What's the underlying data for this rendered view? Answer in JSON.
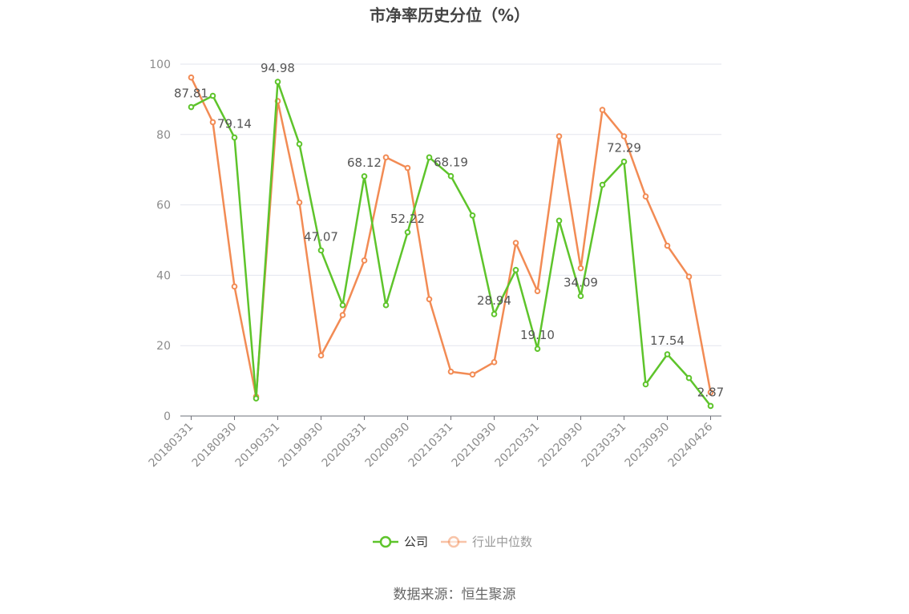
{
  "chart_data": {
    "type": "line",
    "title": "市净率历史分位（%）",
    "source": "数据来源：恒生聚源",
    "xlabel": "",
    "ylabel": "",
    "ylim": [
      0,
      100
    ],
    "yticks": [
      0,
      20,
      40,
      60,
      80,
      100
    ],
    "x": [
      "20180331",
      "20180630",
      "20180930",
      "20181231",
      "20190331",
      "20190630",
      "20190930",
      "20191231",
      "20200331",
      "20200630",
      "20200930",
      "20201231",
      "20210331",
      "20210630",
      "20210930",
      "20211231",
      "20220331",
      "20220630",
      "20220930",
      "20221231",
      "20230331",
      "20230630",
      "20230930",
      "20231231",
      "20240426"
    ],
    "xtick_labels": [
      "20180331",
      "20180930",
      "20190331",
      "20190930",
      "20200331",
      "20200930",
      "20210331",
      "20210930",
      "20220331",
      "20220930",
      "20230331",
      "20230930",
      "20240426"
    ],
    "legend_position": "bottom-center",
    "grid": true,
    "series": [
      {
        "name": "公司",
        "color": "#5ec42b",
        "values": [
          87.81,
          91.0,
          79.14,
          5.0,
          94.98,
          77.3,
          47.07,
          31.5,
          68.12,
          31.5,
          52.22,
          73.5,
          68.19,
          57.0,
          28.94,
          41.5,
          19.1,
          55.5,
          34.09,
          65.7,
          72.29,
          9.0,
          17.54,
          10.8,
          2.87
        ],
        "labels": [
          "87.81",
          "",
          "79.14",
          "",
          "94.98",
          "",
          "47.07",
          "",
          "68.12",
          "",
          "52.22",
          "",
          "68.19",
          "",
          "28.94",
          "",
          "19.10",
          "",
          "34.09",
          "",
          "72.29",
          "",
          "17.54",
          "",
          "2.87"
        ]
      },
      {
        "name": "行业中位数",
        "color": "#f28b54",
        "values": [
          96.2,
          83.5,
          36.8,
          5.5,
          89.5,
          60.7,
          17.2,
          28.7,
          44.2,
          73.5,
          70.5,
          33.2,
          12.6,
          11.8,
          15.3,
          49.2,
          35.5,
          79.5,
          42.0,
          87.0,
          79.5,
          62.4,
          48.4,
          39.6,
          6.7
        ]
      }
    ]
  }
}
